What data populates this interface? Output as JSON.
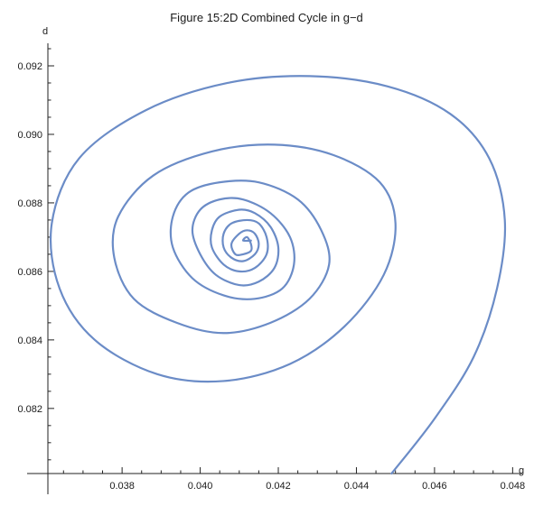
{
  "chart_data": {
    "type": "line",
    "title": "Figure 15:2D Combined Cycle in g−d",
    "xlabel": "g",
    "ylabel": "d",
    "xlim": [
      0.0361,
      0.0482
    ],
    "ylim": [
      0.0801,
      0.0925
    ],
    "x_ticks": [
      0.038,
      0.04,
      0.042,
      0.044,
      0.046,
      0.048
    ],
    "x_tick_labels": [
      "0.038",
      "0.040",
      "0.042",
      "0.044",
      "0.046",
      "0.048"
    ],
    "y_ticks": [
      0.082,
      0.084,
      0.086,
      0.088,
      0.09,
      0.092
    ],
    "y_tick_labels": [
      "0.082",
      "0.084",
      "0.086",
      "0.088",
      "0.090",
      "0.092"
    ],
    "grid": false,
    "line_color": "#6b8cc7",
    "series": [
      {
        "x": [
          0.0449,
          0.046,
          0.047,
          0.0476,
          0.0478,
          0.0474,
          0.0464,
          0.0448,
          0.0428,
          0.0407,
          0.0386,
          0.0369,
          0.0362,
          0.0364,
          0.0373,
          0.0389,
          0.0406,
          0.0423,
          0.0437,
          0.0447,
          0.045,
          0.0446,
          0.0434,
          0.0419,
          0.0403,
          0.0388,
          0.0379,
          0.0378,
          0.0383,
          0.0394,
          0.0406,
          0.0418,
          0.0428,
          0.0433,
          0.0431,
          0.0425,
          0.0415,
          0.0405,
          0.0397,
          0.0393,
          0.0393,
          0.0398,
          0.0406,
          0.0414,
          0.0421,
          0.0424,
          0.0423,
          0.0418,
          0.0411,
          0.0405,
          0.04,
          0.0398,
          0.04,
          0.0404,
          0.041,
          0.0415,
          0.0419,
          0.042,
          0.0418,
          0.0414,
          0.041,
          0.0405,
          0.0403,
          0.0403,
          0.0406,
          0.041,
          0.0414,
          0.0417,
          0.0417,
          0.0415,
          0.0412,
          0.0408,
          0.0406,
          0.0406,
          0.0408,
          0.0411,
          0.0414,
          0.0415,
          0.0414,
          0.0412,
          0.041,
          0.0408,
          0.0409,
          0.0411,
          0.0413,
          0.0413,
          0.0412,
          0.0411,
          0.0413
        ],
        "y": [
          0.0801,
          0.0817,
          0.0835,
          0.0855,
          0.0875,
          0.0893,
          0.0906,
          0.0914,
          0.0917,
          0.0915,
          0.0907,
          0.0893,
          0.0874,
          0.0855,
          0.084,
          0.083,
          0.0828,
          0.0833,
          0.0844,
          0.0859,
          0.0874,
          0.0886,
          0.0894,
          0.0897,
          0.0895,
          0.0888,
          0.0876,
          0.0864,
          0.0852,
          0.0845,
          0.0842,
          0.0845,
          0.0852,
          0.0862,
          0.0872,
          0.0881,
          0.0886,
          0.0886,
          0.0883,
          0.0876,
          0.0867,
          0.0858,
          0.0853,
          0.0852,
          0.0855,
          0.0862,
          0.087,
          0.0877,
          0.0881,
          0.0881,
          0.0878,
          0.0872,
          0.0865,
          0.0859,
          0.0856,
          0.0857,
          0.0861,
          0.0867,
          0.0873,
          0.0877,
          0.0878,
          0.0876,
          0.0872,
          0.0867,
          0.0862,
          0.086,
          0.0861,
          0.0865,
          0.087,
          0.0874,
          0.0875,
          0.0874,
          0.0871,
          0.0867,
          0.0864,
          0.0863,
          0.0865,
          0.0868,
          0.0871,
          0.0872,
          0.0871,
          0.0868,
          0.0865,
          0.0865,
          0.0866,
          0.0868,
          0.087,
          0.0869,
          0.0869
        ]
      }
    ]
  }
}
